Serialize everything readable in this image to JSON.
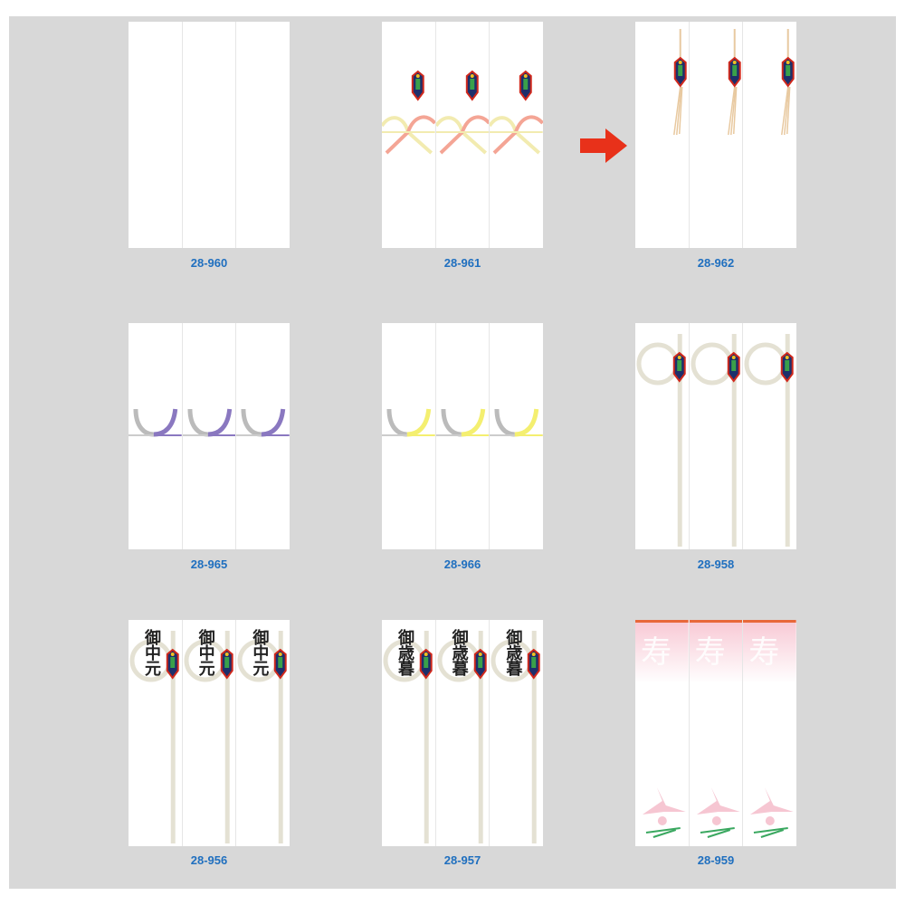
{
  "panels": [
    {
      "code": "28-960",
      "design": "plain"
    },
    {
      "code": "28-961",
      "design": "noshi-bow"
    },
    {
      "code": "28-962",
      "design": "noshi-tassel"
    },
    {
      "code": "28-965",
      "design": "mizuhiki-purple"
    },
    {
      "code": "28-966",
      "design": "mizuhiki-yellow"
    },
    {
      "code": "28-958",
      "design": "ring-noshi"
    },
    {
      "code": "28-956",
      "design": "ring-noshi-text",
      "text": "御中元"
    },
    {
      "code": "28-957",
      "design": "ring-noshi-text",
      "text": "御歳暮"
    },
    {
      "code": "28-959",
      "design": "kotobuki-crane",
      "text": "寿"
    }
  ],
  "colors": {
    "label": "#1f6fbf",
    "arrow": "#e8311a",
    "background": "#d8d8d8"
  },
  "arrow_icon": "arrow-right-icon"
}
